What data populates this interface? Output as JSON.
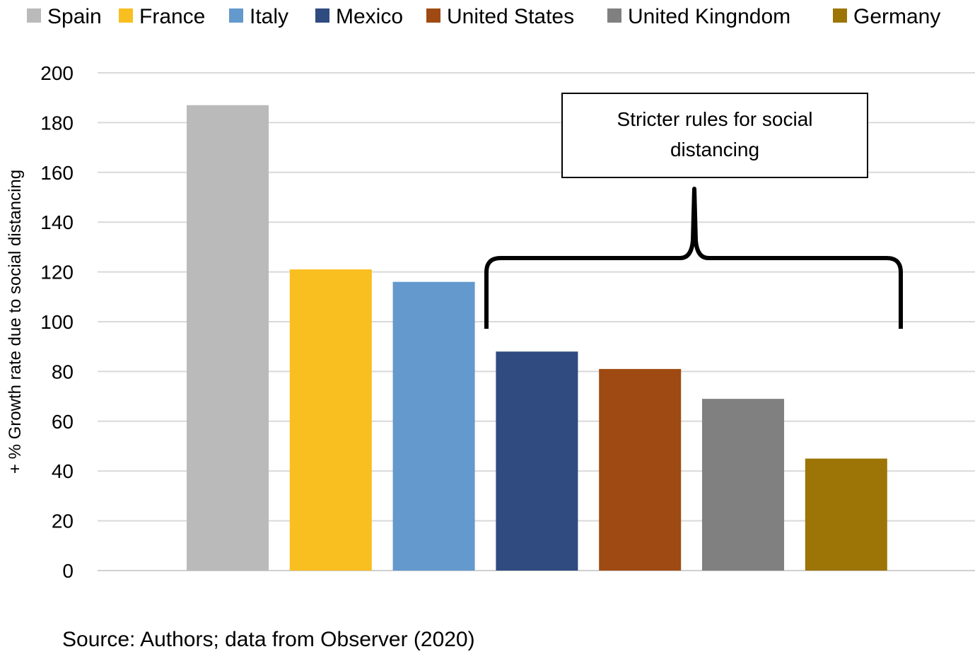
{
  "chart_data": {
    "type": "bar",
    "categories": [
      "Spain",
      "France",
      "Italy",
      "Mexico",
      "United States",
      "United Kingndom",
      "Germany"
    ],
    "values": [
      187,
      121,
      116,
      88,
      81,
      69,
      45
    ],
    "colors": [
      "#bababa",
      "#f9be1f",
      "#6399cc",
      "#2f4b80",
      "#9e4a12",
      "#808080",
      "#9c7506"
    ],
    "ylabel": "+ % Growth rate due to social distancing",
    "xlabel": "",
    "ylim": [
      0,
      200
    ],
    "yticks": [
      0,
      20,
      40,
      60,
      80,
      100,
      120,
      140,
      160,
      180,
      200
    ],
    "grid": true,
    "legend": {
      "position": "top",
      "entries": [
        "Spain",
        "France",
        "Italy",
        "Mexico",
        "United States",
        "United Kingndom",
        "Germany"
      ]
    },
    "annotation": {
      "text_line1": "Stricter rules for social",
      "text_line2": "distancing",
      "bracket_spans": [
        "Mexico",
        "Germany"
      ]
    },
    "source": "Source: Authors; data from Observer (2020)"
  }
}
